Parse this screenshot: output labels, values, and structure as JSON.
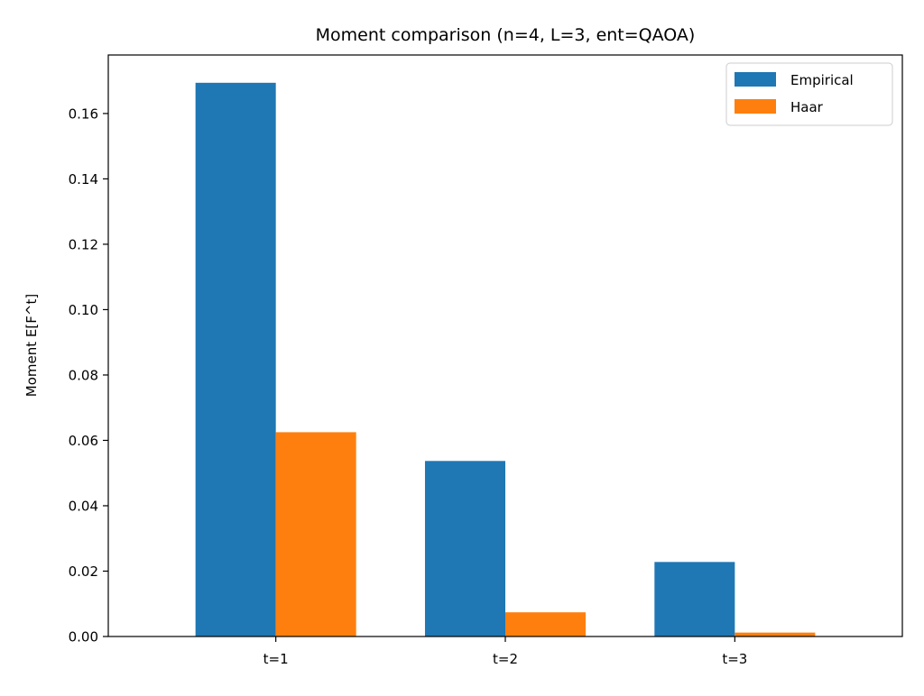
{
  "chart_data": {
    "type": "bar",
    "title": "Moment comparison (n=4, L=3, ent=QAOA)",
    "xlabel": "",
    "ylabel": "Moment  E[F^t]",
    "categories": [
      "t=1",
      "t=2",
      "t=3"
    ],
    "series": [
      {
        "name": "Empirical",
        "color": "#1f77b4",
        "values": [
          0.1694,
          0.0537,
          0.0228
        ]
      },
      {
        "name": "Haar",
        "color": "#ff7f0e",
        "values": [
          0.0625,
          0.0074,
          0.0012
        ]
      }
    ],
    "ylim": [
      0,
      0.1779
    ],
    "yticks": [
      0.0,
      0.02,
      0.04,
      0.06,
      0.08,
      0.1,
      0.12,
      0.14,
      0.16
    ],
    "ytick_labels": [
      "0.00",
      "0.02",
      "0.04",
      "0.06",
      "0.08",
      "0.10",
      "0.12",
      "0.14",
      "0.16"
    ],
    "grid": false,
    "legend_position": "top-right"
  }
}
